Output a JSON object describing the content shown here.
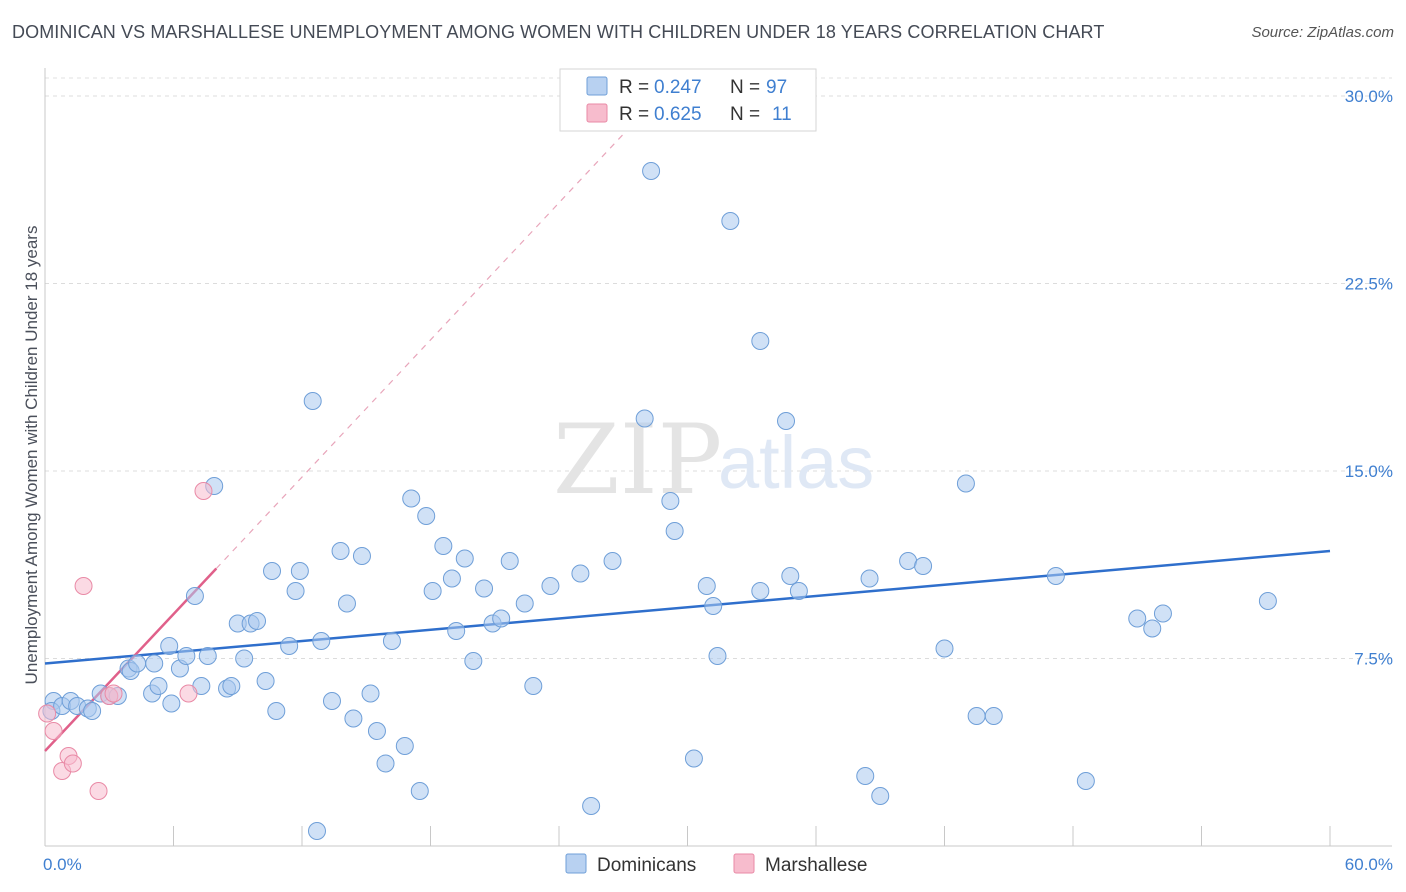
{
  "header": {
    "title": "DOMINICAN VS MARSHALLESE UNEMPLOYMENT AMONG WOMEN WITH CHILDREN UNDER 18 YEARS CORRELATION CHART",
    "source": "Source: ZipAtlas.com"
  },
  "watermark": {
    "zip": "ZIP",
    "atlas": "atlas"
  },
  "legend": {
    "rows": [
      {
        "r_label": "R =",
        "r_value": "0.247",
        "n_label": "N =",
        "n_value": "97",
        "color": "#b8d1f1"
      },
      {
        "r_label": "R =",
        "r_value": "0.625",
        "n_label": "N =",
        "n_value": "11",
        "color": "#f7bccd"
      }
    ]
  },
  "bottom_legend": {
    "items": [
      {
        "label": "Dominicans",
        "color": "#b8d1f1"
      },
      {
        "label": "Marshallese",
        "color": "#f7bccd"
      }
    ]
  },
  "chart_data": {
    "type": "scatter",
    "title": "DOMINICAN VS MARSHALLESE UNEMPLOYMENT AMONG WOMEN WITH CHILDREN UNDER 18 YEARS CORRELATION CHART",
    "xlabel": "",
    "ylabel": "Unemployment Among Women with Children Under 18 years",
    "xlim": [
      0,
      60
    ],
    "ylim": [
      0,
      30
    ],
    "x_tick_labels": [
      "0.0%",
      "60.0%"
    ],
    "y_ticks": [
      7.5,
      15.0,
      22.5,
      30.0
    ],
    "y_tick_labels": [
      "7.5%",
      "15.0%",
      "22.5%",
      "30.0%"
    ],
    "grid": true,
    "legend_position": "top-center",
    "series": [
      {
        "name": "Dominicans",
        "color": "#a9c8ee",
        "edge": "#6f9fd8",
        "trend": {
          "x0": 0,
          "y0": 7.3,
          "x1": 60,
          "y1": 11.8,
          "color": "#2f6fcc"
        },
        "points": [
          [
            0.4,
            5.8
          ],
          [
            0.3,
            5.4
          ],
          [
            0.8,
            5.6
          ],
          [
            1.2,
            5.8
          ],
          [
            1.5,
            5.6
          ],
          [
            2.0,
            5.5
          ],
          [
            2.2,
            5.4
          ],
          [
            2.6,
            6.1
          ],
          [
            3.0,
            6.0
          ],
          [
            3.4,
            6.0
          ],
          [
            3.9,
            7.1
          ],
          [
            4.0,
            7.0
          ],
          [
            4.3,
            7.3
          ],
          [
            5.0,
            6.1
          ],
          [
            5.1,
            7.3
          ],
          [
            5.3,
            6.4
          ],
          [
            5.8,
            8.0
          ],
          [
            5.9,
            5.7
          ],
          [
            6.3,
            7.1
          ],
          [
            6.6,
            7.6
          ],
          [
            7.0,
            10.0
          ],
          [
            7.3,
            6.4
          ],
          [
            7.6,
            7.6
          ],
          [
            7.9,
            14.4
          ],
          [
            8.5,
            6.3
          ],
          [
            8.7,
            6.4
          ],
          [
            9.0,
            8.9
          ],
          [
            9.3,
            7.5
          ],
          [
            9.6,
            8.9
          ],
          [
            9.9,
            9.0
          ],
          [
            10.3,
            6.6
          ],
          [
            10.8,
            5.4
          ],
          [
            10.6,
            11.0
          ],
          [
            11.4,
            8.0
          ],
          [
            11.7,
            10.2
          ],
          [
            11.9,
            11.0
          ],
          [
            12.5,
            17.8
          ],
          [
            12.7,
            0.6
          ],
          [
            12.9,
            8.2
          ],
          [
            13.4,
            5.8
          ],
          [
            13.8,
            11.8
          ],
          [
            14.1,
            9.7
          ],
          [
            14.4,
            5.1
          ],
          [
            14.8,
            11.6
          ],
          [
            15.2,
            6.1
          ],
          [
            15.5,
            4.6
          ],
          [
            15.9,
            3.3
          ],
          [
            16.2,
            8.2
          ],
          [
            16.8,
            4.0
          ],
          [
            17.1,
            13.9
          ],
          [
            17.5,
            2.2
          ],
          [
            17.8,
            13.2
          ],
          [
            18.1,
            10.2
          ],
          [
            18.6,
            12.0
          ],
          [
            19.0,
            10.7
          ],
          [
            19.2,
            8.6
          ],
          [
            19.6,
            11.5
          ],
          [
            20.0,
            7.4
          ],
          [
            20.5,
            10.3
          ],
          [
            20.9,
            8.9
          ],
          [
            21.3,
            9.1
          ],
          [
            21.7,
            11.4
          ],
          [
            22.4,
            9.7
          ],
          [
            22.8,
            6.4
          ],
          [
            23.6,
            10.4
          ],
          [
            25.0,
            10.9
          ],
          [
            25.5,
            1.6
          ],
          [
            26.5,
            11.4
          ],
          [
            28.0,
            17.1
          ],
          [
            28.3,
            27.0
          ],
          [
            29.2,
            13.8
          ],
          [
            29.4,
            12.6
          ],
          [
            30.3,
            3.5
          ],
          [
            30.9,
            10.4
          ],
          [
            31.2,
            9.6
          ],
          [
            31.4,
            7.6
          ],
          [
            32.0,
            25.0
          ],
          [
            33.4,
            20.2
          ],
          [
            33.4,
            10.2
          ],
          [
            34.6,
            17.0
          ],
          [
            34.8,
            10.8
          ],
          [
            35.2,
            10.2
          ],
          [
            38.3,
            2.8
          ],
          [
            38.5,
            10.7
          ],
          [
            39.0,
            2.0
          ],
          [
            40.3,
            11.4
          ],
          [
            41.0,
            11.2
          ],
          [
            42.0,
            7.9
          ],
          [
            43.0,
            14.5
          ],
          [
            43.5,
            5.2
          ],
          [
            44.3,
            5.2
          ],
          [
            47.2,
            10.8
          ],
          [
            48.6,
            2.6
          ],
          [
            51.0,
            9.1
          ],
          [
            51.7,
            8.7
          ],
          [
            52.2,
            9.3
          ],
          [
            57.1,
            9.8
          ]
        ]
      },
      {
        "name": "Marshallese",
        "color": "#f7bccd",
        "edge": "#e98aa6",
        "trend": {
          "x0": 0,
          "y0": 3.8,
          "x1": 8.0,
          "y1": 11.1,
          "color": "#e0608a"
        },
        "trend_extension": {
          "x0": 8.0,
          "y0": 11.1,
          "x1": 29.0,
          "y1": 30.3
        },
        "points": [
          [
            0.1,
            5.3
          ],
          [
            0.4,
            4.6
          ],
          [
            0.8,
            3.0
          ],
          [
            1.1,
            3.6
          ],
          [
            1.3,
            3.3
          ],
          [
            1.8,
            10.4
          ],
          [
            2.5,
            2.2
          ],
          [
            3.0,
            6.0
          ],
          [
            3.2,
            6.1
          ],
          [
            6.7,
            6.1
          ],
          [
            7.4,
            14.2
          ]
        ]
      }
    ]
  }
}
